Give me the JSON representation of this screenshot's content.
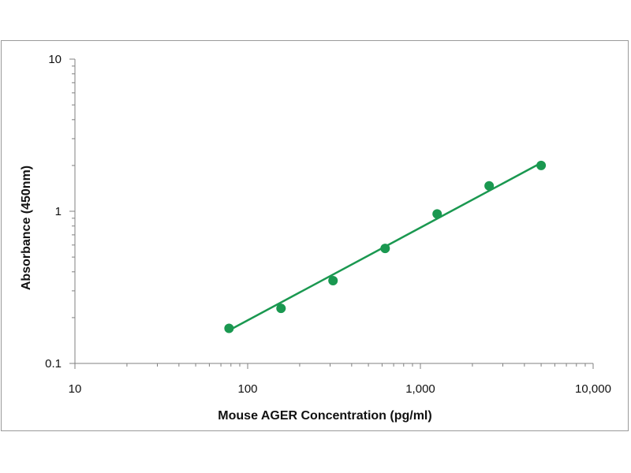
{
  "chart_data": {
    "type": "scatter",
    "title": "",
    "xlabel": "Mouse AGER Concentration (pg/ml)",
    "ylabel": "Absorbance (450nm)",
    "x_scale": "log",
    "y_scale": "log",
    "xlim": [
      10,
      10000
    ],
    "ylim": [
      0.1,
      10
    ],
    "x_tick_labels": [
      "10",
      "100",
      "1,000",
      "10,000"
    ],
    "y_tick_labels": [
      "0.1",
      "1",
      "10"
    ],
    "grid": false,
    "legend": "none",
    "series": [
      {
        "points": [
          {
            "x": 78,
            "y": 0.17
          },
          {
            "x": 156,
            "y": 0.23
          },
          {
            "x": 312,
            "y": 0.35
          },
          {
            "x": 625,
            "y": 0.57
          },
          {
            "x": 1250,
            "y": 0.96
          },
          {
            "x": 2500,
            "y": 1.47
          },
          {
            "x": 5000,
            "y": 2.0
          }
        ],
        "trendline": {
          "type": "power",
          "x_range": [
            78,
            5000
          ],
          "y_range": [
            0.165,
            2.08
          ]
        }
      }
    ],
    "color": "#1a9850"
  }
}
